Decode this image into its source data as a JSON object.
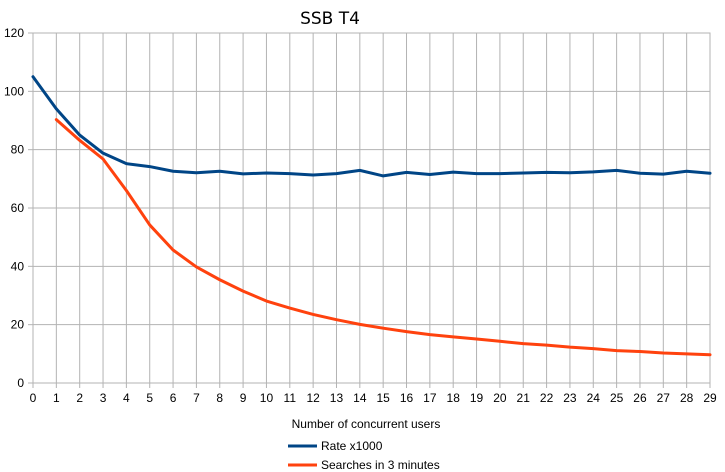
{
  "chart_data": {
    "type": "line",
    "title": "SSB T4",
    "xlabel": "Number of concurrent users",
    "ylabel": "",
    "xlim": [
      0,
      29
    ],
    "ylim": [
      0,
      120
    ],
    "yticks": [
      0,
      20,
      40,
      60,
      80,
      100,
      120
    ],
    "grid": true,
    "legend_position": "bottom-center",
    "x": [
      0,
      1,
      2,
      3,
      4,
      5,
      6,
      7,
      8,
      9,
      10,
      11,
      12,
      13,
      14,
      15,
      16,
      17,
      18,
      19,
      20,
      21,
      22,
      23,
      24,
      25,
      26,
      27,
      28,
      29
    ],
    "series": [
      {
        "name": "Rate x1000",
        "color": "#004586",
        "x": [
          0,
          1,
          2,
          3,
          4,
          5,
          6,
          7,
          8,
          9,
          10,
          11,
          12,
          13,
          14,
          15,
          16,
          17,
          18,
          19,
          20,
          21,
          22,
          23,
          24,
          25,
          26,
          27,
          28,
          29
        ],
        "values": [
          105,
          94,
          85,
          78.8,
          75.2,
          74.2,
          72.6,
          72.1,
          72.6,
          71.7,
          72.0,
          71.8,
          71.3,
          71.8,
          72.9,
          71.0,
          72.2,
          71.5,
          72.3,
          71.8,
          71.8,
          72.0,
          72.2,
          72.1,
          72.4,
          72.9,
          71.9,
          71.6,
          72.6,
          71.9
        ]
      },
      {
        "name": "Searches in 3 minutes",
        "color": "#ff420e",
        "x": [
          1,
          2,
          3,
          4,
          5,
          6,
          7,
          8,
          9,
          10,
          11,
          12,
          13,
          14,
          15,
          16,
          17,
          18,
          19,
          20,
          21,
          22,
          23,
          24,
          25,
          26,
          27,
          28,
          29
        ],
        "values": [
          90.3,
          83.2,
          76.8,
          66,
          54.2,
          45.6,
          39.8,
          35.4,
          31.5,
          28.1,
          25.7,
          23.5,
          21.7,
          20.1,
          18.8,
          17.6,
          16.6,
          15.8,
          15.1,
          14.3,
          13.5,
          13.0,
          12.3,
          11.8,
          11.1,
          10.8,
          10.3,
          10.0,
          9.7
        ]
      }
    ]
  }
}
